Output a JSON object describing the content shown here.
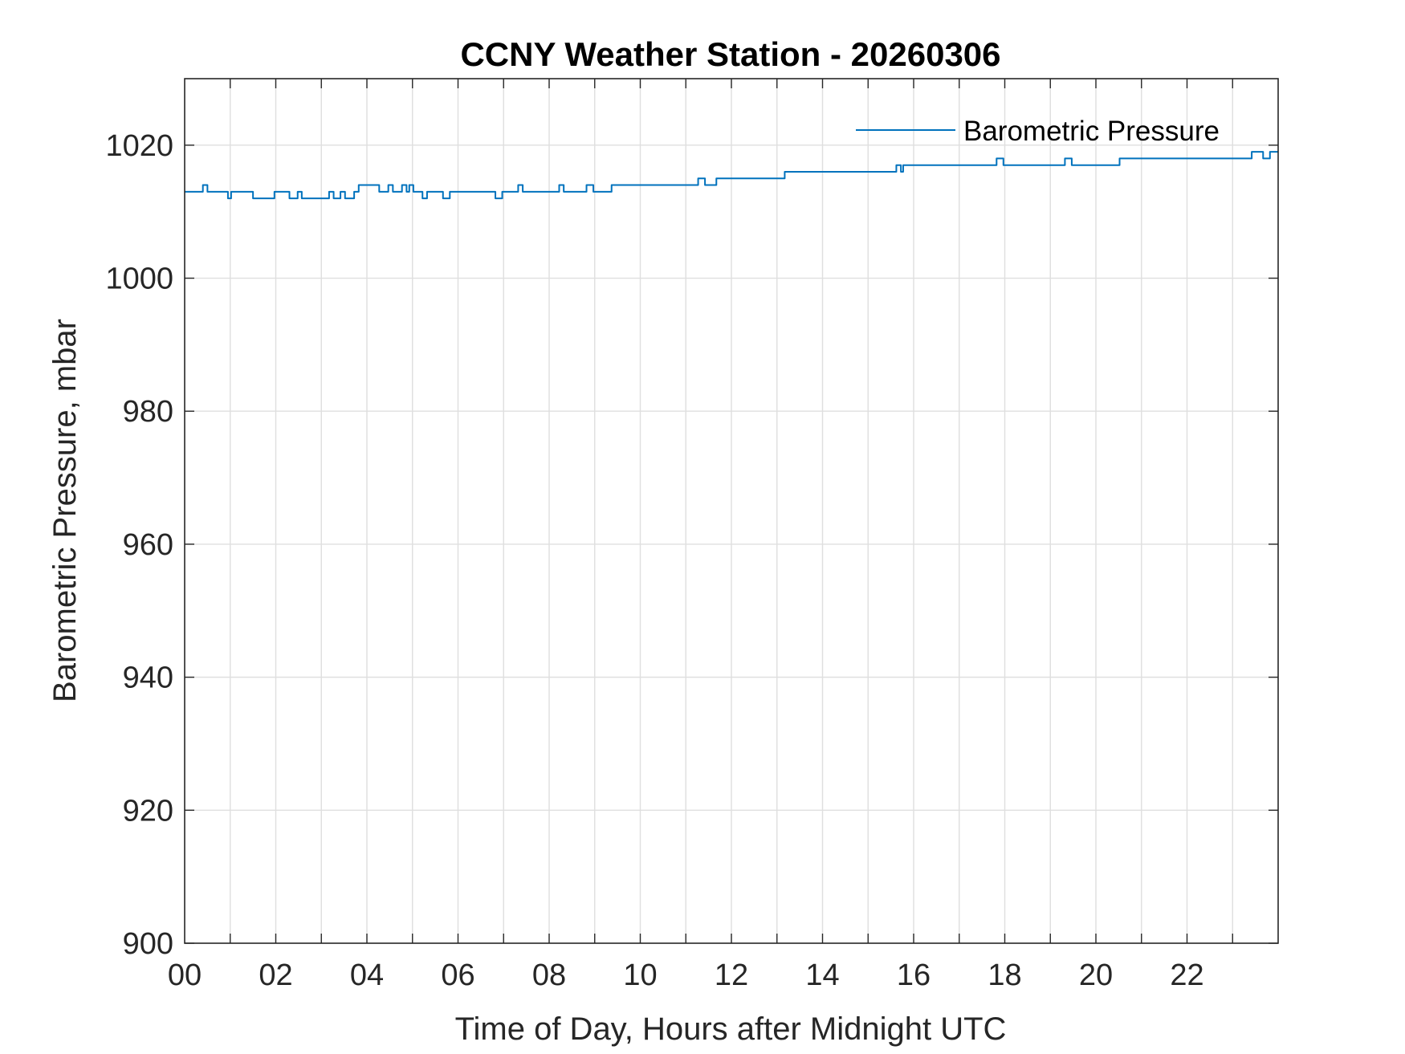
{
  "chart_data": {
    "type": "line",
    "title": "CCNY Weather Station - 20260306",
    "xlabel": "Time of Day, Hours after Midnight UTC",
    "ylabel": "Barometric Pressure, mbar",
    "xlim": [
      0,
      24
    ],
    "ylim": [
      900,
      1030
    ],
    "xticks": [
      0,
      2,
      4,
      6,
      8,
      10,
      12,
      14,
      16,
      18,
      20,
      22
    ],
    "xtick_labels": [
      "00",
      "02",
      "04",
      "06",
      "08",
      "10",
      "12",
      "14",
      "16",
      "18",
      "20",
      "22"
    ],
    "yticks": [
      900,
      920,
      940,
      960,
      980,
      1000,
      1020
    ],
    "ytick_labels": [
      "900",
      "920",
      "940",
      "960",
      "980",
      "1000",
      "1020"
    ],
    "grid": true,
    "legend_position": "top-right",
    "colors": {
      "series": "#0072BD",
      "grid": "#dfdfdf",
      "axis": "#262626"
    },
    "series": [
      {
        "name": "Barometric Pressure",
        "step": true,
        "x": [
          0,
          0.4,
          0.5,
          0.95,
          1.02,
          1.5,
          1.97,
          2.3,
          2.48,
          2.57,
          3.17,
          3.27,
          3.42,
          3.52,
          3.72,
          3.82,
          4.12,
          4.27,
          4.47,
          4.57,
          4.77,
          4.87,
          4.93,
          5.02,
          5.22,
          5.32,
          5.67,
          5.82,
          6.82,
          6.97,
          7.32,
          7.42,
          8.22,
          8.32,
          8.82,
          8.97,
          9.37,
          11.27,
          11.42,
          11.67,
          13.17,
          15.62,
          15.72,
          15.77,
          17.82,
          17.97,
          19.32,
          19.47,
          20.52,
          23.42,
          23.67,
          23.82,
          24.0
        ],
        "values": [
          1013,
          1014,
          1013,
          1012,
          1013,
          1012,
          1013,
          1012,
          1013,
          1012,
          1013,
          1012,
          1013,
          1012,
          1013,
          1014,
          1014,
          1013,
          1014,
          1013,
          1014,
          1013,
          1014,
          1013,
          1012,
          1013,
          1012,
          1013,
          1012,
          1013,
          1014,
          1013,
          1014,
          1013,
          1014,
          1013,
          1014,
          1015,
          1014,
          1015,
          1016,
          1017,
          1016,
          1017,
          1018,
          1017,
          1018,
          1017,
          1018,
          1019,
          1018,
          1019,
          1019
        ]
      }
    ]
  }
}
